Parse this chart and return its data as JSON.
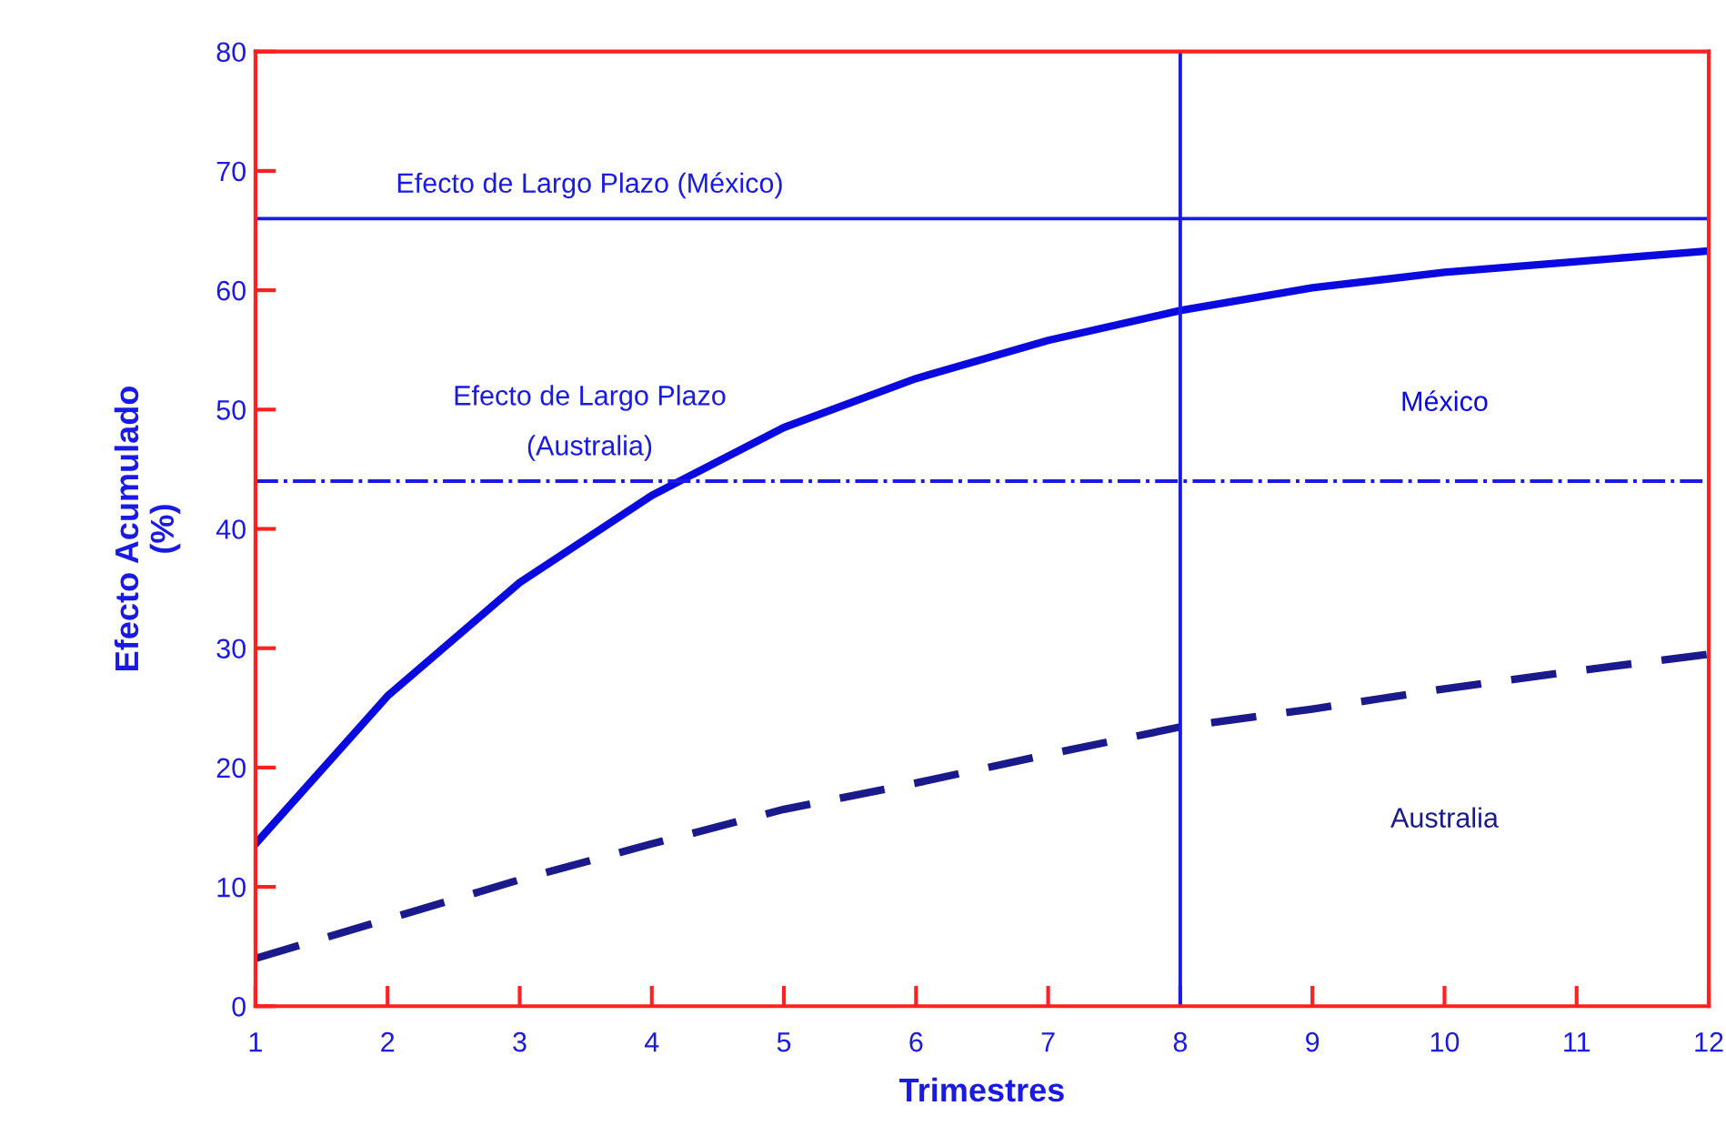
{
  "chart_data": {
    "type": "line",
    "xlabel": "Trimestres",
    "ylabel": "Efecto Acumulado\n(%)",
    "x": [
      1,
      2,
      3,
      4,
      5,
      6,
      7,
      8,
      9,
      10,
      11,
      12
    ],
    "series": [
      {
        "name": "México",
        "color": "#0a0ae0",
        "line_style": "solid",
        "values": [
          13.6,
          26,
          35.5,
          42.8,
          48.5,
          52.6,
          55.8,
          58.3,
          60.2,
          61.5,
          62.4,
          63.3
        ]
      },
      {
        "name": "Australia",
        "color": "#1a1a8c",
        "line_style": "dashed",
        "values": [
          4,
          7.3,
          10.6,
          13.6,
          16.5,
          18.7,
          21.1,
          23.4,
          24.9,
          26.6,
          28.1,
          29.5
        ]
      }
    ],
    "ref_lines": [
      {
        "axis": "y",
        "value": 66,
        "label": "Efecto de Largo Plazo (México)",
        "color": "#1a1ae6",
        "line_style": "solid"
      },
      {
        "axis": "y",
        "value": 44,
        "label": "Efecto de Largo Plazo\n(Australia)",
        "color": "#1a1ae6",
        "line_style": "dashdot"
      },
      {
        "axis": "x",
        "value": 8,
        "color": "#1a1ae6",
        "line_style": "solid"
      }
    ],
    "xlim": [
      1,
      12
    ],
    "xticks": [
      1,
      2,
      3,
      4,
      5,
      6,
      7,
      8,
      9,
      10,
      11,
      12
    ],
    "ylim": [
      0,
      80
    ],
    "yticks": [
      0,
      10,
      20,
      30,
      40,
      50,
      60,
      70,
      80
    ],
    "grid": false,
    "legend": false
  }
}
